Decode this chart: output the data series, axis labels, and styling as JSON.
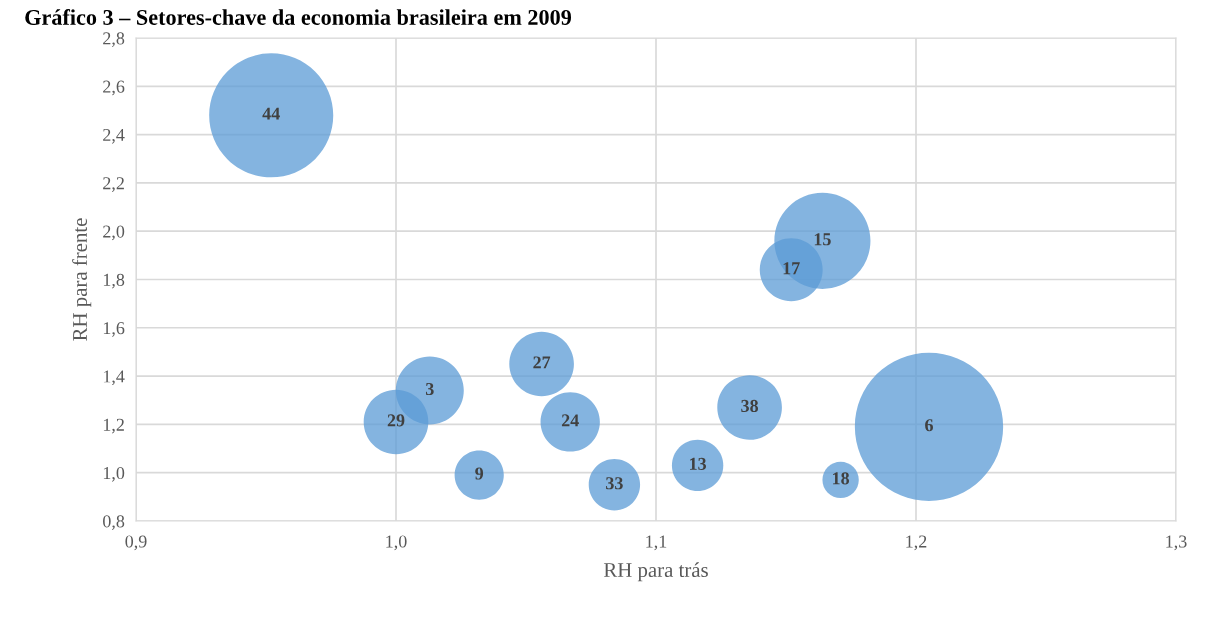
{
  "chart_data": {
    "type": "bubble",
    "title": "Gráfico 3 – Setores-chave da economia brasileira em 2009",
    "xlabel": "RH para trás",
    "ylabel": "RH para frente",
    "xlim": [
      0.9,
      1.3
    ],
    "xticks": [
      {
        "value": 0.9,
        "label": "0,9"
      },
      {
        "value": 1.0,
        "label": "1,0"
      },
      {
        "value": 1.1,
        "label": "1,1"
      },
      {
        "value": 1.2,
        "label": "1,2"
      },
      {
        "value": 1.3,
        "label": "1,3"
      }
    ],
    "ylim": [
      0.8,
      2.8
    ],
    "yticks": [
      {
        "value": 0.8,
        "label": "0,8"
      },
      {
        "value": 1.0,
        "label": "1,0"
      },
      {
        "value": 1.2,
        "label": "1,2"
      },
      {
        "value": 1.4,
        "label": "1,4"
      },
      {
        "value": 1.6,
        "label": "1,6"
      },
      {
        "value": 1.8,
        "label": "1,8"
      },
      {
        "value": 2.0,
        "label": "2,0"
      },
      {
        "value": 2.2,
        "label": "2,2"
      },
      {
        "value": 2.4,
        "label": "2,4"
      },
      {
        "value": 2.6,
        "label": "2,6"
      },
      {
        "value": 2.8,
        "label": "2,8"
      }
    ],
    "grid": true,
    "series": [
      {
        "color": "#5b9bd5",
        "x": [
          0.952,
          1.164,
          1.152,
          1.056,
          1.013,
          1.0,
          1.067,
          1.136,
          1.205,
          1.032,
          1.116,
          1.084,
          1.171
        ],
        "values": [
          2.48,
          1.96,
          1.84,
          1.45,
          1.34,
          1.21,
          1.21,
          1.27,
          1.19,
          0.99,
          1.03,
          0.95,
          0.97
        ],
        "sizes": [
          0.7,
          0.42,
          0.18,
          0.19,
          0.21,
          0.19,
          0.16,
          0.19,
          1,
          0.11,
          0.12,
          0.12,
          0.06
        ]
      }
    ],
    "annotations": [
      {
        "text": "44",
        "x": 0.952,
        "y": 2.48
      },
      {
        "text": "15",
        "x": 1.164,
        "y": 1.96
      },
      {
        "text": "17",
        "x": 1.152,
        "y": 1.84
      },
      {
        "text": "27",
        "x": 1.056,
        "y": 1.45
      },
      {
        "text": "3",
        "x": 1.013,
        "y": 1.34
      },
      {
        "text": "29",
        "x": 1.0,
        "y": 1.21
      },
      {
        "text": "24",
        "x": 1.067,
        "y": 1.21
      },
      {
        "text": "38",
        "x": 1.136,
        "y": 1.27
      },
      {
        "text": "6",
        "x": 1.205,
        "y": 1.19
      },
      {
        "text": "9",
        "x": 1.032,
        "y": 0.99
      },
      {
        "text": "13",
        "x": 1.116,
        "y": 1.03
      },
      {
        "text": "33",
        "x": 1.084,
        "y": 0.95
      },
      {
        "text": "18",
        "x": 1.171,
        "y": 0.97
      }
    ]
  }
}
